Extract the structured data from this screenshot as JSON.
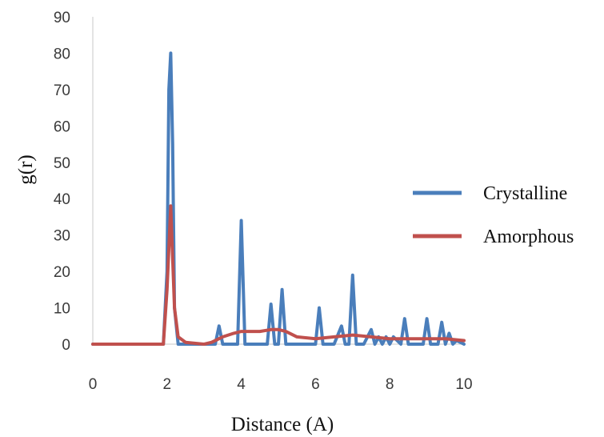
{
  "chart_data": {
    "type": "line",
    "title": "",
    "xlabel": "Distance (A)",
    "ylabel": "g(r)",
    "xlim": [
      0,
      10
    ],
    "ylim": [
      0,
      90
    ],
    "x_ticks": [
      "0",
      "2",
      "4",
      "6",
      "8",
      "10"
    ],
    "y_ticks": [
      "0",
      "10",
      "20",
      "30",
      "40",
      "50",
      "60",
      "70",
      "80",
      "90"
    ],
    "grid": false,
    "legend_position": "right",
    "series": [
      {
        "name": "Crystalline",
        "color": "#4a7ebb",
        "x": [
          0,
          1.9,
          2.0,
          2.05,
          2.1,
          2.15,
          2.2,
          2.3,
          3.3,
          3.4,
          3.5,
          3.9,
          4.0,
          4.1,
          4.7,
          4.8,
          4.9,
          5.0,
          5.1,
          5.2,
          5.3,
          6.0,
          6.1,
          6.2,
          6.5,
          6.7,
          6.8,
          6.9,
          7.0,
          7.1,
          7.3,
          7.5,
          7.6,
          7.7,
          7.8,
          7.9,
          8.0,
          8.1,
          8.3,
          8.4,
          8.5,
          8.9,
          9.0,
          9.1,
          9.3,
          9.4,
          9.5,
          9.6,
          9.7,
          9.8,
          10.0
        ],
        "y": [
          0,
          0,
          20,
          70,
          80,
          55,
          10,
          0,
          0,
          5,
          0,
          0,
          34,
          0,
          0,
          11,
          0,
          0,
          15,
          0,
          0,
          0,
          10,
          0,
          0,
          5,
          0,
          0,
          19,
          0,
          0,
          4,
          0,
          2,
          0,
          2,
          0,
          2,
          0,
          7,
          0,
          0,
          7,
          0,
          0,
          6,
          0,
          3,
          0,
          1,
          0
        ]
      },
      {
        "name": "Amorphous",
        "color": "#c0504d",
        "x": [
          0,
          1.9,
          2.0,
          2.1,
          2.2,
          2.3,
          2.5,
          3.0,
          3.2,
          3.5,
          3.8,
          4.0,
          4.2,
          4.5,
          4.8,
          5.0,
          5.2,
          5.5,
          6.0,
          6.5,
          7.0,
          7.5,
          8.0,
          8.5,
          9.0,
          9.5,
          10.0
        ],
        "y": [
          0,
          0,
          15,
          38,
          10,
          2,
          0.5,
          0,
          0.5,
          2,
          3,
          3.5,
          3.5,
          3.5,
          4,
          4,
          3.5,
          2,
          1.5,
          2,
          2.5,
          2,
          1.5,
          1.5,
          1.5,
          1.5,
          1
        ]
      }
    ]
  }
}
